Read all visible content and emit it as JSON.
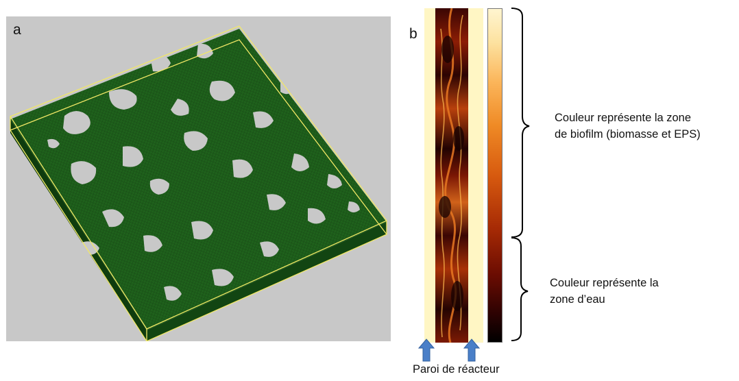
{
  "panel_a": {
    "letter": "a"
  },
  "panel_b": {
    "letter": "b"
  },
  "annotations": {
    "biofilm_line1": "Couleur représente la zone",
    "biofilm_line2": "de biofilm (biomasse et EPS)",
    "water_line1": "Couleur représente la",
    "water_line2": "zone d’eau"
  },
  "wall_label": "Paroi de réacteur",
  "colors": {
    "background_a": "#c8c8c8",
    "biofilm_green": "#1d5e1b",
    "bounding_box": "#f2e866",
    "wall_yellow": "#fff6c4",
    "arrow_blue": "#4a7fc8"
  }
}
